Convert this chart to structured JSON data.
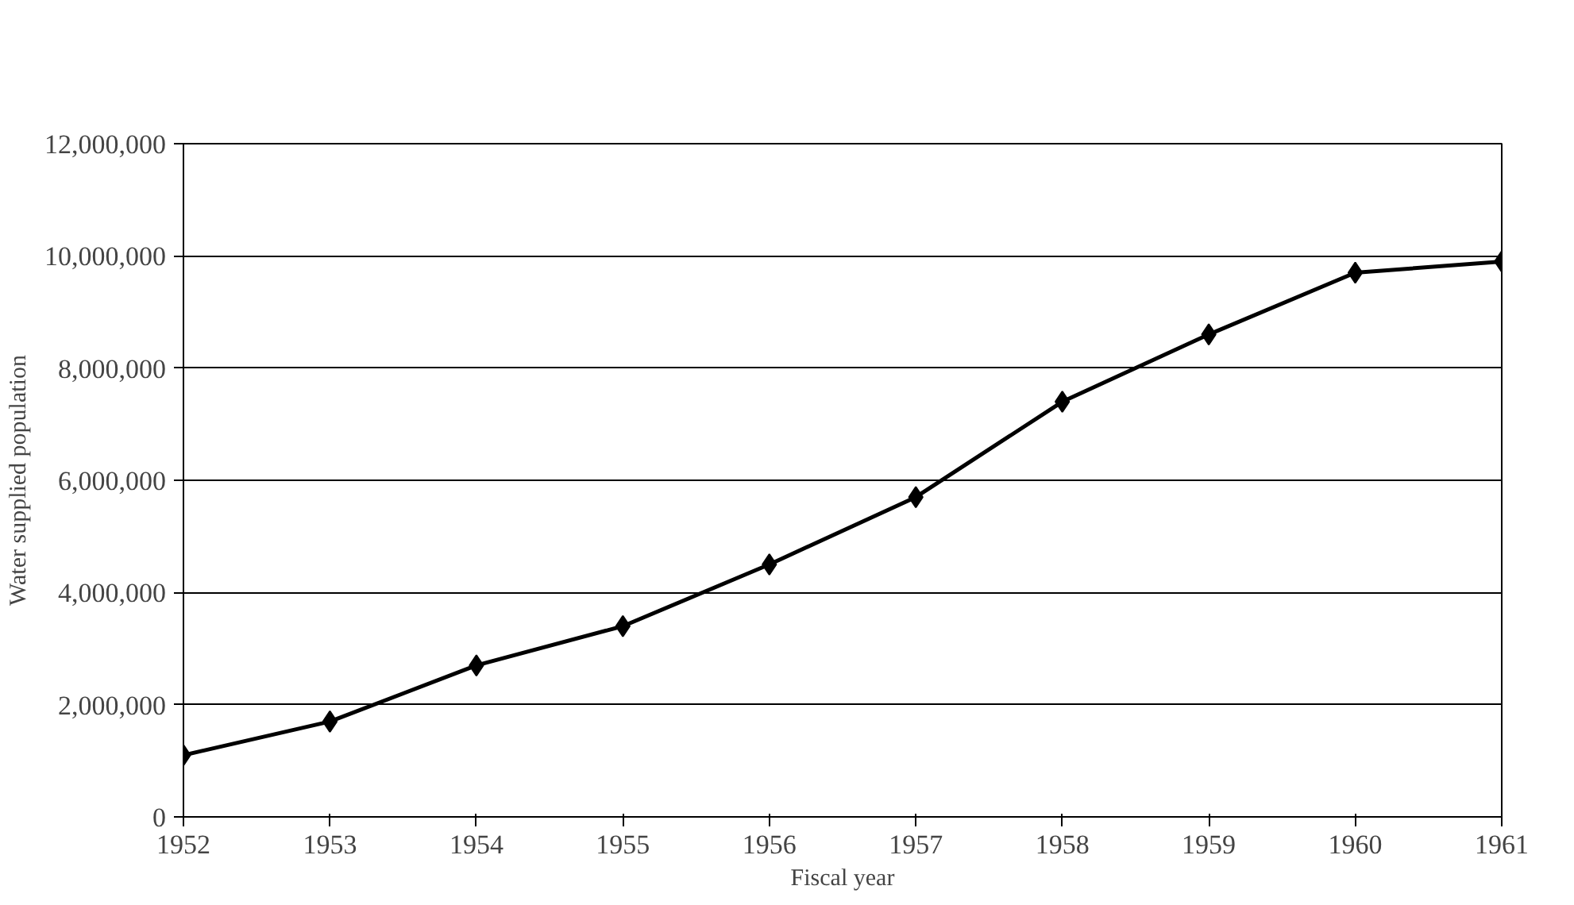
{
  "chart_data": {
    "type": "line",
    "xlabel": "Fiscal year",
    "ylabel": "Water supplied population",
    "x": [
      1952,
      1953,
      1954,
      1955,
      1956,
      1957,
      1958,
      1959,
      1960,
      1961
    ],
    "series": [
      {
        "color": "#000000",
        "values": [
          1100000,
          1700000,
          2700000,
          3400000,
          4500000,
          5700000,
          7400000,
          8600000,
          9700000,
          9900000
        ]
      }
    ],
    "xlim": [
      1952,
      1961
    ],
    "xticks": [
      1952,
      1953,
      1954,
      1955,
      1956,
      1957,
      1958,
      1959,
      1960,
      1961
    ],
    "ylim": [
      0,
      12000000
    ],
    "yticks": [
      {
        "value": 0,
        "label": "0"
      },
      {
        "value": 2000000,
        "label": "2,000,000"
      },
      {
        "value": 4000000,
        "label": "4,000,000"
      },
      {
        "value": 6000000,
        "label": "6,000,000"
      },
      {
        "value": 8000000,
        "label": "8,000,000"
      },
      {
        "value": 10000000,
        "label": "10,000,000"
      },
      {
        "value": 12000000,
        "label": "12,000,000"
      }
    ],
    "grid": "y",
    "marker": "diamond",
    "line_style": "solid"
  }
}
